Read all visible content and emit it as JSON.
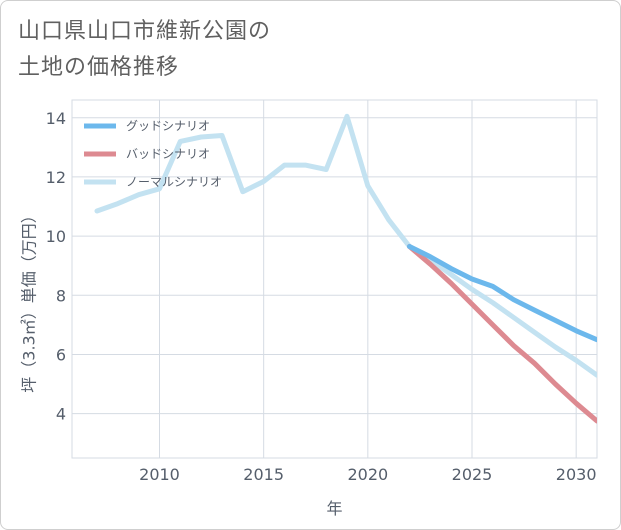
{
  "title_line1": "山口県山口市維新公園の",
  "title_line2": "土地の価格推移",
  "chart_data": {
    "type": "line",
    "xlabel": "年",
    "ylabel": "坪（3.3㎡）単価（万円）",
    "xlim": [
      2005.8,
      2031
    ],
    "ylim": [
      2.5,
      14.6
    ],
    "xticks": [
      2010,
      2015,
      2020,
      2025,
      2030
    ],
    "yticks": [
      4,
      6,
      8,
      10,
      12,
      14
    ],
    "grid": true,
    "legend_position": "top-left",
    "series": [
      {
        "name": "グッドシナリオ",
        "color": "#6cb8ec",
        "x": [
          2022,
          2023,
          2024,
          2025,
          2026,
          2027,
          2028,
          2029,
          2030,
          2031
        ],
        "y": [
          9.65,
          9.3,
          8.9,
          8.55,
          8.3,
          7.85,
          7.5,
          7.15,
          6.8,
          6.5
        ]
      },
      {
        "name": "バッドシナリオ",
        "color": "#dd8a91",
        "x": [
          2022,
          2023,
          2024,
          2025,
          2026,
          2027,
          2028,
          2029,
          2030,
          2031
        ],
        "y": [
          9.65,
          9.05,
          8.4,
          7.7,
          7.0,
          6.3,
          5.7,
          5.0,
          4.35,
          3.75
        ]
      },
      {
        "name": "ノーマルシナリオ",
        "color": "#c3e2f1",
        "x": [
          2007,
          2008,
          2009,
          2010,
          2011,
          2012,
          2013,
          2014,
          2015,
          2016,
          2017,
          2018,
          2019,
          2020,
          2021,
          2022,
          2023,
          2024,
          2025,
          2026,
          2027,
          2028,
          2029,
          2030,
          2031
        ],
        "y": [
          10.85,
          11.1,
          11.4,
          11.6,
          13.2,
          13.35,
          13.4,
          11.5,
          11.85,
          12.4,
          12.4,
          12.25,
          14.05,
          11.7,
          10.55,
          9.65,
          9.2,
          8.7,
          8.2,
          7.75,
          7.25,
          6.75,
          6.25,
          5.8,
          5.3
        ]
      }
    ]
  }
}
